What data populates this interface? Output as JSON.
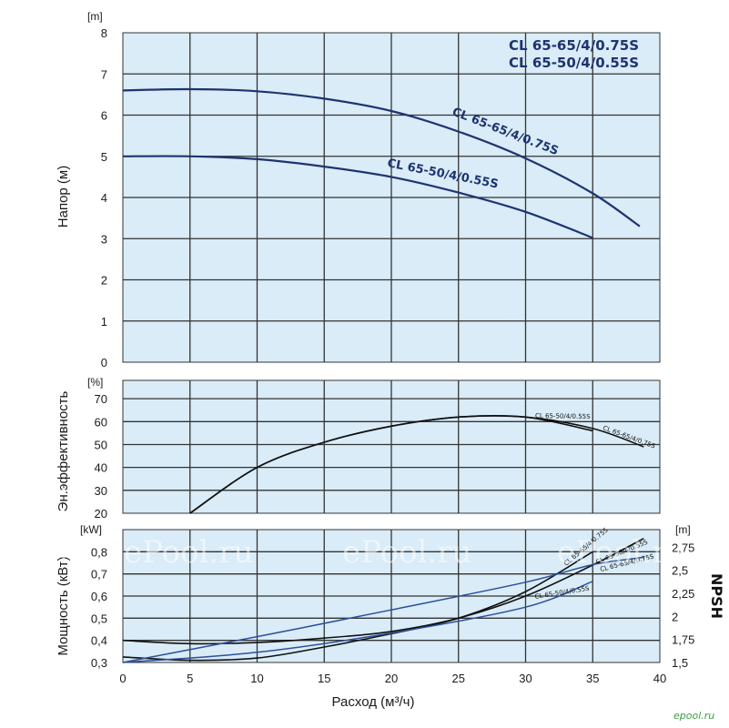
{
  "colors": {
    "panel_bg": "#d9ecf7",
    "grid": "#333333",
    "series_65_65": "#1f3370",
    "series_65_50": "#1f3370",
    "efficiency_curve": "#111111",
    "npsh_curve_65_65": "#2d4f9a",
    "npsh_curve_65_50": "#2d4f9a"
  },
  "chart_data": [
    {
      "type": "line",
      "panel": "head",
      "ylabel": "Напор (м)",
      "yunit": "[m]",
      "ylim": [
        0,
        8
      ],
      "yticks": [
        "0",
        "1",
        "2",
        "3",
        "4",
        "5",
        "6",
        "7",
        "8"
      ],
      "xlim": [
        0,
        40
      ],
      "legend": [
        "CL 65-65/4/0.75S",
        "CL 65-50/4/0.55S"
      ],
      "grid": true,
      "series": [
        {
          "name": "CL 65-65/4/0.75S",
          "x": [
            0,
            5,
            10,
            15,
            20,
            25,
            30,
            35,
            38.5
          ],
          "y": [
            6.6,
            6.63,
            6.58,
            6.4,
            6.1,
            5.6,
            4.95,
            4.1,
            3.3
          ]
        },
        {
          "name": "CL 65-50/4/0.55S",
          "x": [
            0,
            5,
            10,
            15,
            20,
            25,
            30,
            35
          ],
          "y": [
            5.0,
            5.0,
            4.93,
            4.75,
            4.5,
            4.12,
            3.65,
            3.02
          ]
        }
      ]
    },
    {
      "type": "line",
      "panel": "efficiency",
      "ylabel": "Эн.эффективность",
      "yunit": "[%]",
      "ylim": [
        20,
        78
      ],
      "yticks": [
        "20",
        "30",
        "40",
        "50",
        "60",
        "70"
      ],
      "xlim": [
        0,
        40
      ],
      "grid": true,
      "series": [
        {
          "name": "CL 65-50/4/0.55S",
          "x": [
            5,
            10,
            15,
            20,
            25,
            30,
            35
          ],
          "y": [
            20,
            40,
            51,
            58,
            62,
            62,
            56
          ]
        },
        {
          "name": "CL 65-65/4/0.75S",
          "x": [
            5,
            10,
            15,
            20,
            25,
            30,
            35,
            38.8
          ],
          "y": [
            20,
            40,
            51,
            58,
            62,
            62,
            57,
            49
          ]
        }
      ]
    },
    {
      "type": "line",
      "panel": "power_npsh",
      "ylabel": "Мощность (кВт)",
      "yunit": "[kW]",
      "ylim": [
        0.3,
        0.9
      ],
      "yticks": [
        "0,3",
        "0,4",
        "0,5",
        "0,6",
        "0,7",
        "0,8"
      ],
      "y2label": "NPSH",
      "y2unit": "[m]",
      "y2lim": [
        1.5,
        2.94
      ],
      "y2ticks": [
        "1,5",
        "1,75",
        "2",
        "2,25",
        "2,5",
        "2,75"
      ],
      "xlabel": "Расход (м³/ч)",
      "xlim": [
        0,
        40
      ],
      "xticks": [
        "0",
        "5",
        "10",
        "15",
        "20",
        "25",
        "30",
        "35",
        "40"
      ],
      "grid": true,
      "series": [
        {
          "name": "CL 65-65/4/0.75S",
          "axis": "power",
          "x": [
            0,
            5,
            10,
            15,
            20,
            25,
            30,
            35,
            38.8
          ],
          "y": [
            0.4,
            0.385,
            0.39,
            0.41,
            0.44,
            0.5,
            0.6,
            0.74,
            0.86
          ]
        },
        {
          "name": "CL 65-50/4/0.55S",
          "axis": "power",
          "x": [
            0,
            5,
            10,
            15,
            20,
            25,
            30,
            35
          ],
          "y": [
            0.325,
            0.31,
            0.32,
            0.37,
            0.43,
            0.5,
            0.62,
            0.8
          ]
        },
        {
          "name": "CL 65-65/4/0.75S",
          "axis": "npsh",
          "x": [
            0,
            10,
            20,
            30,
            35,
            38.8
          ],
          "y": [
            1.5,
            1.78,
            2.07,
            2.37,
            2.56,
            2.64
          ]
        },
        {
          "name": "CL 65-50/4/0.55S",
          "axis": "npsh",
          "x": [
            0,
            10,
            20,
            30,
            35
          ],
          "y": [
            1.5,
            1.61,
            1.82,
            2.1,
            2.38
          ]
        }
      ]
    }
  ],
  "watermark": "ePool.ru",
  "site_mark": "epool.ru"
}
